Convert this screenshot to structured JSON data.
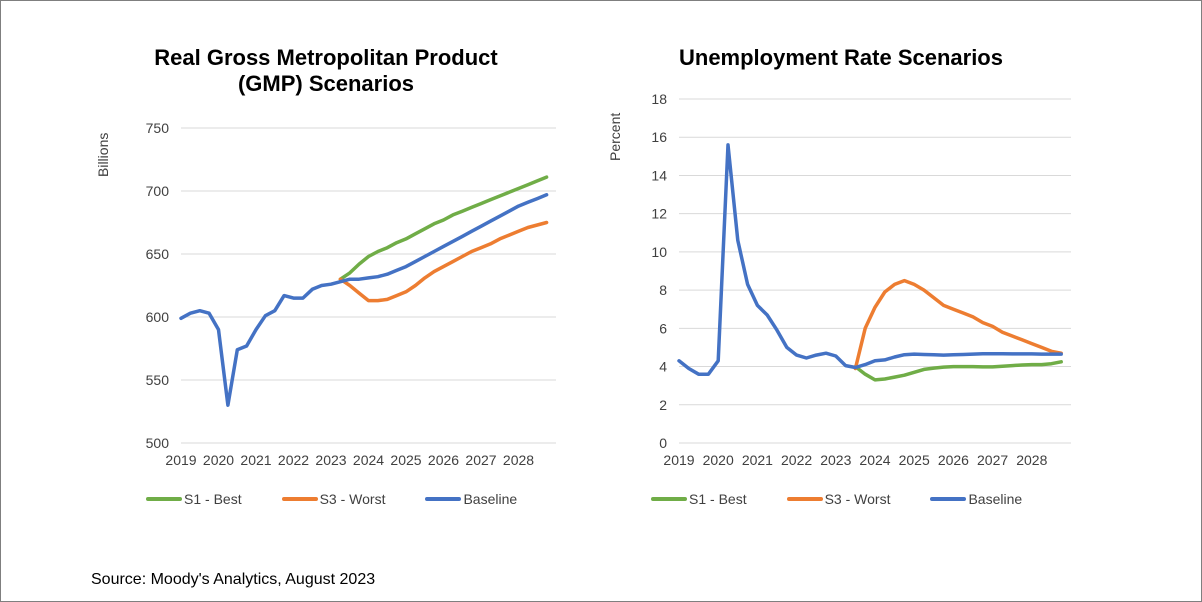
{
  "source_note": "Source:  Moody's Analytics, August 2023",
  "chart_data": [
    {
      "type": "line",
      "title": "Real Gross Metropolitan Product\n(GMP) Scenarios",
      "xlabel": "",
      "ylabel": "Billions",
      "ylim": [
        500,
        750
      ],
      "yticks": [
        500,
        550,
        600,
        650,
        700,
        750
      ],
      "xticks": [
        "2019",
        "2020",
        "2021",
        "2022",
        "2023",
        "2024",
        "2025",
        "2026",
        "2027",
        "2028"
      ],
      "xrange": [
        2019,
        2029
      ],
      "grid": true,
      "legend_position": "bottom",
      "series": [
        {
          "name": "S1 - Best",
          "color": "#70ad47",
          "x": [
            2023.25,
            2023.5,
            2023.75,
            2024.0,
            2024.25,
            2024.5,
            2024.75,
            2025.0,
            2025.25,
            2025.5,
            2025.75,
            2026.0,
            2026.25,
            2026.5,
            2026.75,
            2027.0,
            2027.25,
            2027.5,
            2027.75,
            2028.0,
            2028.25,
            2028.5,
            2028.75
          ],
          "y": [
            630,
            635,
            642,
            648,
            652,
            655,
            659,
            662,
            666,
            670,
            674,
            677,
            681,
            684,
            687,
            690,
            693,
            696,
            699,
            702,
            705,
            708,
            711
          ]
        },
        {
          "name": "S3 - Worst",
          "color": "#ed7d31",
          "x": [
            2023.25,
            2023.5,
            2023.75,
            2024.0,
            2024.25,
            2024.5,
            2024.75,
            2025.0,
            2025.25,
            2025.5,
            2025.75,
            2026.0,
            2026.25,
            2026.5,
            2026.75,
            2027.0,
            2027.25,
            2027.5,
            2027.75,
            2028.0,
            2028.25,
            2028.5,
            2028.75
          ],
          "y": [
            630,
            625,
            619,
            613,
            613,
            614,
            617,
            620,
            625,
            631,
            636,
            640,
            644,
            648,
            652,
            655,
            658,
            662,
            665,
            668,
            671,
            673,
            675
          ]
        },
        {
          "name": "Baseline",
          "color": "#4472c4",
          "x": [
            2019.0,
            2019.25,
            2019.5,
            2019.75,
            2020.0,
            2020.25,
            2020.5,
            2020.75,
            2021.0,
            2021.25,
            2021.5,
            2021.75,
            2022.0,
            2022.25,
            2022.5,
            2022.75,
            2023.0,
            2023.25,
            2023.5,
            2023.75,
            2024.0,
            2024.25,
            2024.5,
            2024.75,
            2025.0,
            2025.25,
            2025.5,
            2025.75,
            2026.0,
            2026.25,
            2026.5,
            2026.75,
            2027.0,
            2027.25,
            2027.5,
            2027.75,
            2028.0,
            2028.25,
            2028.5,
            2028.75
          ],
          "y": [
            599,
            603,
            605,
            603,
            590,
            530,
            574,
            577,
            590,
            601,
            605,
            617,
            615,
            615,
            622,
            625,
            626,
            628,
            630,
            630,
            631,
            632,
            634,
            637,
            640,
            644,
            648,
            652,
            656,
            660,
            664,
            668,
            672,
            676,
            680,
            684,
            688,
            691,
            694,
            697
          ]
        }
      ]
    },
    {
      "type": "line",
      "title": "Unemployment Rate Scenarios",
      "xlabel": "",
      "ylabel": "Percent",
      "ylim": [
        0,
        18
      ],
      "yticks": [
        0,
        2,
        4,
        6,
        8,
        10,
        12,
        14,
        16,
        18
      ],
      "xticks": [
        "2019",
        "2020",
        "2021",
        "2022",
        "2023",
        "2024",
        "2025",
        "2026",
        "2027",
        "2028"
      ],
      "xrange": [
        2019,
        2029
      ],
      "grid": true,
      "legend_position": "bottom",
      "series": [
        {
          "name": "S1 - Best",
          "color": "#70ad47",
          "x": [
            2023.5,
            2023.75,
            2024.0,
            2024.25,
            2024.5,
            2024.75,
            2025.0,
            2025.25,
            2025.5,
            2025.75,
            2026.0,
            2026.25,
            2026.5,
            2026.75,
            2027.0,
            2027.25,
            2027.5,
            2027.75,
            2028.0,
            2028.25,
            2028.5,
            2028.75
          ],
          "y": [
            4.0,
            3.6,
            3.3,
            3.35,
            3.45,
            3.55,
            3.7,
            3.85,
            3.92,
            3.97,
            4.0,
            4.0,
            4.0,
            3.98,
            3.98,
            4.02,
            4.05,
            4.08,
            4.1,
            4.1,
            4.15,
            4.25
          ]
        },
        {
          "name": "S3 - Worst",
          "color": "#ed7d31",
          "x": [
            2023.5,
            2023.75,
            2024.0,
            2024.25,
            2024.5,
            2024.75,
            2025.0,
            2025.25,
            2025.5,
            2025.75,
            2026.0,
            2026.25,
            2026.5,
            2026.75,
            2027.0,
            2027.25,
            2027.5,
            2027.75,
            2028.0,
            2028.25,
            2028.5,
            2028.75
          ],
          "y": [
            3.9,
            6.0,
            7.1,
            7.9,
            8.3,
            8.5,
            8.3,
            8.0,
            7.6,
            7.2,
            7.0,
            6.8,
            6.6,
            6.3,
            6.1,
            5.8,
            5.6,
            5.4,
            5.2,
            5.0,
            4.8,
            4.7
          ]
        },
        {
          "name": "Baseline",
          "color": "#4472c4",
          "x": [
            2019.0,
            2019.25,
            2019.5,
            2019.75,
            2020.0,
            2020.25,
            2020.5,
            2020.75,
            2021.0,
            2021.25,
            2021.5,
            2021.75,
            2022.0,
            2022.25,
            2022.5,
            2022.75,
            2023.0,
            2023.25,
            2023.5,
            2023.75,
            2024.0,
            2024.25,
            2024.5,
            2024.75,
            2025.0,
            2025.25,
            2025.5,
            2025.75,
            2026.0,
            2026.25,
            2026.5,
            2026.75,
            2027.0,
            2027.25,
            2027.5,
            2027.75,
            2028.0,
            2028.25,
            2028.5,
            2028.75
          ],
          "y": [
            4.3,
            3.9,
            3.6,
            3.6,
            4.3,
            15.6,
            10.6,
            8.3,
            7.2,
            6.7,
            5.9,
            5.0,
            4.6,
            4.45,
            4.6,
            4.7,
            4.55,
            4.05,
            3.95,
            4.1,
            4.3,
            4.35,
            4.5,
            4.62,
            4.65,
            4.63,
            4.62,
            4.6,
            4.62,
            4.63,
            4.65,
            4.67,
            4.67,
            4.67,
            4.66,
            4.66,
            4.66,
            4.65,
            4.65,
            4.65
          ]
        }
      ]
    }
  ]
}
